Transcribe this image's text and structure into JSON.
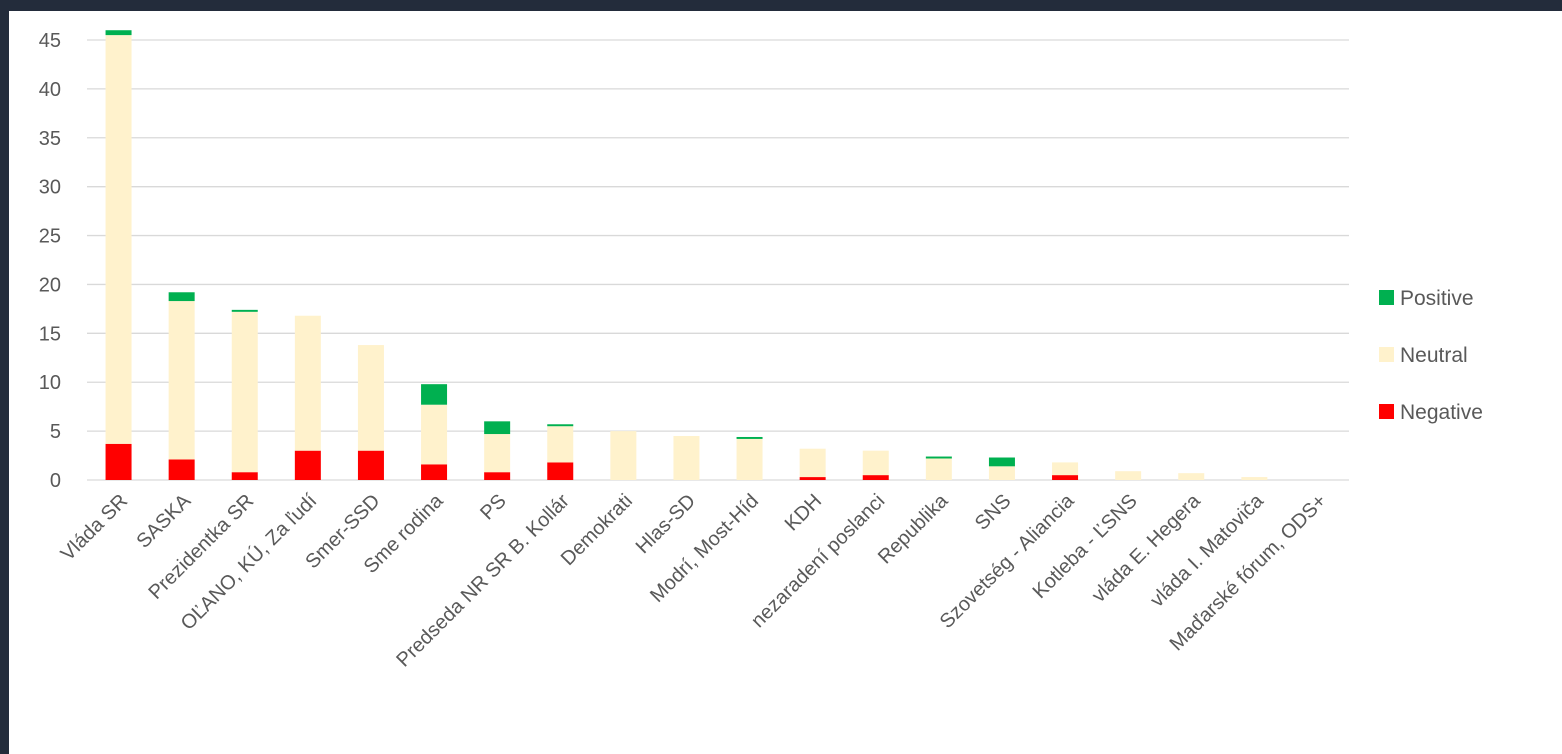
{
  "chart_data": {
    "type": "bar",
    "stacked": true,
    "title": "",
    "xlabel": "",
    "ylabel": "",
    "ylim": [
      0,
      45
    ],
    "yticks": [
      0,
      5,
      10,
      15,
      20,
      25,
      30,
      35,
      40,
      45
    ],
    "grid": true,
    "legend_position": "right",
    "categories": [
      "Vláda SR",
      "SASKA",
      "Prezidentka SR",
      "OĽANO, KÚ, Za ľudí",
      "Smer-SSD",
      "Sme rodina",
      "PS",
      "Predseda NR SR B. Kollár",
      "Demokrati",
      "Hlas-SD",
      "Modrí, Most-Híd",
      "KDH",
      "nezaradení poslanci",
      "Republika",
      "SNS",
      "Szovetség - Aliancia",
      "Kotleba - ĽSNS",
      "vláda E. Hegera",
      "vláda I. Matoviča",
      "Maďarské fórum, ODS+"
    ],
    "series": [
      {
        "name": "Negative",
        "color": "#ff0000",
        "values": [
          3.7,
          2.1,
          0.8,
          3.0,
          3.0,
          1.6,
          0.8,
          1.8,
          0,
          0,
          0,
          0.3,
          0.5,
          0,
          0,
          0.5,
          0,
          0,
          0,
          0
        ]
      },
      {
        "name": "Neutral",
        "color": "#fff2cc",
        "values": [
          41.8,
          16.2,
          16.4,
          13.8,
          10.8,
          6.1,
          3.9,
          3.7,
          5.0,
          4.5,
          4.2,
          2.9,
          2.5,
          2.2,
          1.4,
          1.3,
          0.9,
          0.7,
          0.3,
          0
        ]
      },
      {
        "name": "Positive",
        "color": "#00b050",
        "values": [
          0.5,
          0.9,
          0.2,
          0,
          0,
          2.1,
          1.3,
          0.2,
          0,
          0,
          0.2,
          0,
          0,
          0.2,
          0.9,
          0,
          0,
          0,
          0,
          0
        ]
      }
    ],
    "legend": [
      {
        "name": "Positive",
        "color": "#00b050"
      },
      {
        "name": "Neutral",
        "color": "#fff2cc"
      },
      {
        "name": "Negative",
        "color": "#ff0000"
      }
    ]
  }
}
